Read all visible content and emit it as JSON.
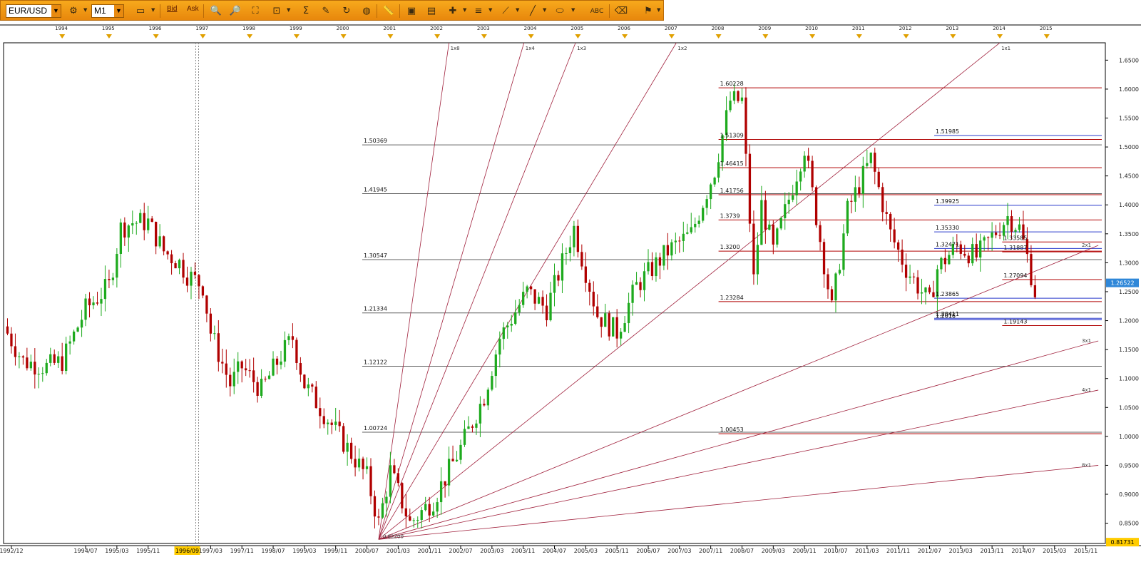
{
  "toolbar": {
    "symbol": "EUR/USD",
    "timeframe": "M1",
    "bid_label": "Bid",
    "ask_label": "Ask"
  },
  "colors": {
    "toolbar": "#f4a21a",
    "bull": "#1eaa1e",
    "bear": "#b00000",
    "fan": "#a0203c",
    "level_gray": "#606060",
    "level_red": "#b00000",
    "level_blue": "#2a3acb"
  },
  "top_years": [
    "1994",
    "1995",
    "1996",
    "1997",
    "1998",
    "1999",
    "2000",
    "2001",
    "2002",
    "2003",
    "2004",
    "2005",
    "2006",
    "2007",
    "2008",
    "2009",
    "2010",
    "2011",
    "2012",
    "2013",
    "2014",
    "2015"
  ],
  "bottom_dates": [
    "1992/12",
    "1994/07",
    "1995/03",
    "1995/11",
    "1996/09",
    "1997/03",
    "1997/11",
    "1998/07",
    "1999/03",
    "1999/11",
    "2000/07",
    "2001/03",
    "2001/11",
    "2002/07",
    "2003/03",
    "2003/11",
    "2004/07",
    "2005/03",
    "2005/11",
    "2006/07",
    "2007/03",
    "2007/11",
    "2008/07",
    "2009/03",
    "2009/11",
    "2010/07",
    "2011/03",
    "2011/11",
    "2012/07",
    "2013/03",
    "2013/11",
    "2014/07",
    "2015/03",
    "2015/11"
  ],
  "crosshair_date": "1996/09",
  "price_ticks": [
    "1.6500",
    "1.6000",
    "1.5500",
    "1.5000",
    "1.4500",
    "1.4000",
    "1.3500",
    "1.3000",
    "1.2500",
    "1.2000",
    "1.1500",
    "1.1000",
    "1.0500",
    "1.0000",
    "0.9500",
    "0.9000",
    "0.8500"
  ],
  "current_price": "1.26522",
  "low_price": "0.81731",
  "chart_data": {
    "type": "candlestick",
    "symbol": "EUR/USD",
    "timeframe": "M1",
    "ylim": [
      0.815,
      1.68
    ],
    "grid": false,
    "close_path": [
      [
        "1992/10",
        1.19
      ],
      [
        "1993/03",
        1.13
      ],
      [
        "1993/09",
        1.12
      ],
      [
        "1994/01",
        1.13
      ],
      [
        "1994/07",
        1.22
      ],
      [
        "1995/01",
        1.26
      ],
      [
        "1995/04",
        1.36
      ],
      [
        "1995/07",
        1.37
      ],
      [
        "1995/11",
        1.37
      ],
      [
        "1996/03",
        1.32
      ],
      [
        "1996/07",
        1.3
      ],
      [
        "1996/09",
        1.28
      ],
      [
        "1997/01",
        1.26
      ],
      [
        "1997/03",
        1.18
      ],
      [
        "1997/08",
        1.09
      ],
      [
        "1997/11",
        1.12
      ],
      [
        "1998/04",
        1.08
      ],
      [
        "1998/09",
        1.14
      ],
      [
        "1998/12",
        1.17
      ],
      [
        "1999/03",
        1.09
      ],
      [
        "1999/07",
        1.05
      ],
      [
        "1999/11",
        1.01
      ],
      [
        "2000/03",
        0.97
      ],
      [
        "2000/07",
        0.93
      ],
      [
        "2000/10",
        0.85
      ],
      [
        "2001/01",
        0.94
      ],
      [
        "2001/06",
        0.85
      ],
      [
        "2001/12",
        0.89
      ],
      [
        "2002/07",
        0.98
      ],
      [
        "2003/01",
        1.07
      ],
      [
        "2003/05",
        1.17
      ],
      [
        "2003/12",
        1.25
      ],
      [
        "2004/05",
        1.22
      ],
      [
        "2004/12",
        1.36
      ],
      [
        "2005/06",
        1.21
      ],
      [
        "2005/11",
        1.18
      ],
      [
        "2006/04",
        1.26
      ],
      [
        "2006/12",
        1.32
      ],
      [
        "2007/06",
        1.35
      ],
      [
        "2007/12",
        1.46
      ],
      [
        "2008/04",
        1.58
      ],
      [
        "2008/07",
        1.58
      ],
      [
        "2008/10",
        1.27
      ],
      [
        "2008/12",
        1.4
      ],
      [
        "2009/03",
        1.32
      ],
      [
        "2009/11",
        1.5
      ],
      [
        "2010/06",
        1.22
      ],
      [
        "2010/10",
        1.39
      ],
      [
        "2011/04",
        1.48
      ],
      [
        "2011/09",
        1.35
      ],
      [
        "2012/01",
        1.29
      ],
      [
        "2012/07",
        1.23
      ],
      [
        "2012/09",
        1.29
      ],
      [
        "2013/02",
        1.33
      ],
      [
        "2013/07",
        1.31
      ],
      [
        "2014/03",
        1.38
      ],
      [
        "2014/06",
        1.36
      ],
      [
        "2014/08",
        1.31
      ],
      [
        "2014/10",
        1.25
      ]
    ],
    "horizontal_levels_left": [
      "1.50369",
      "1.41945",
      "1.30547",
      "1.21334",
      "1.12122",
      "1.00724"
    ],
    "horizontal_levels_mid": [
      "1.60228",
      "1.51309",
      "1.46415",
      "1.41756",
      "1.3739",
      "1.3200",
      "1.23284",
      "1.00453"
    ],
    "horizontal_levels_right": [
      "1.51985",
      "1.39925",
      "1.35330",
      "1.32471",
      "1.2016",
      "1.23865",
      "1.2016",
      "1.20411"
    ],
    "horizontal_levels_far": [
      "1.33585",
      "1.31887",
      "1.27094",
      "1.19143"
    ],
    "gann_fan_labels": [
      "1x8",
      "1x4",
      "1x3",
      "1x2",
      "1x1",
      "2x1",
      "3x1",
      "4x1",
      "8x1"
    ],
    "gann_origin_label": "0.82200"
  }
}
